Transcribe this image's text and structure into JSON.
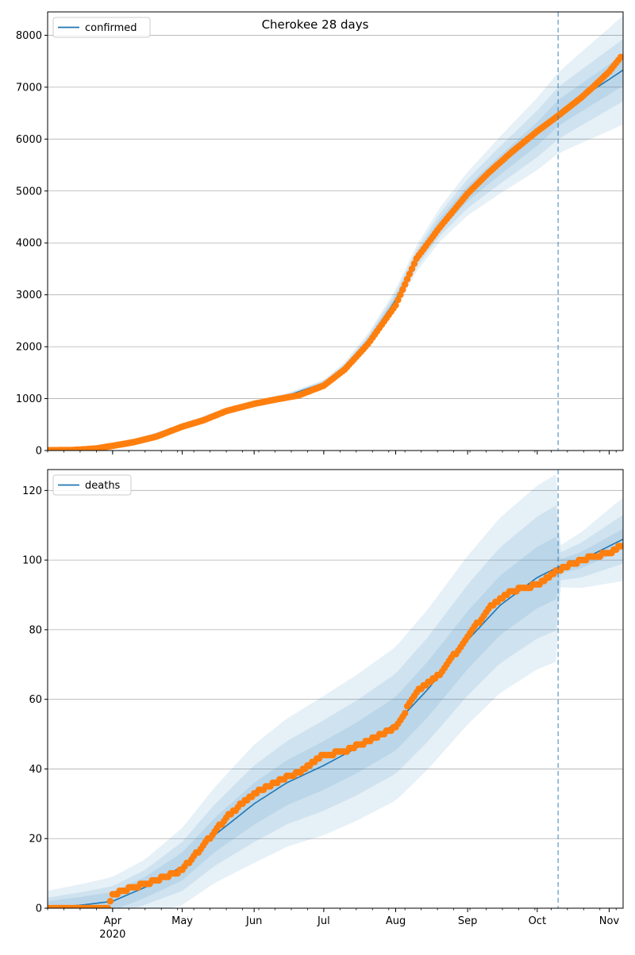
{
  "title": "Cherokee 28 days",
  "colors": {
    "model": "#1f77b4",
    "observed": "#ff7f0e",
    "band": "#1f77b4",
    "grid": "#b0b0b0",
    "vline": "#1f77b4"
  },
  "x_axis": {
    "ticks": [
      {
        "date": "2020-04-01",
        "label": "Apr",
        "sub": "2020"
      },
      {
        "date": "2020-05-01",
        "label": "May"
      },
      {
        "date": "2020-06-01",
        "label": "Jun"
      },
      {
        "date": "2020-07-01",
        "label": "Jul"
      },
      {
        "date": "2020-08-01",
        "label": "Aug"
      },
      {
        "date": "2020-09-01",
        "label": "Sep"
      },
      {
        "date": "2020-10-01",
        "label": "Oct"
      },
      {
        "date": "2020-11-01",
        "label": "Nov"
      }
    ],
    "range": [
      "2020-03-04",
      "2020-11-07"
    ],
    "forecast_start": "2020-10-10"
  },
  "chart_data": [
    {
      "type": "line",
      "legend": "confirmed",
      "legend_position": "top-left",
      "grid": true,
      "ylim": [
        0,
        8450
      ],
      "yticks": [
        0,
        1000,
        2000,
        3000,
        4000,
        5000,
        6000,
        7000,
        8000
      ],
      "model": {
        "x": [
          "2020-03-04",
          "2020-03-20",
          "2020-04-01",
          "2020-04-15",
          "2020-05-01",
          "2020-05-15",
          "2020-06-01",
          "2020-06-15",
          "2020-07-01",
          "2020-07-10",
          "2020-07-20",
          "2020-08-01",
          "2020-08-10",
          "2020-08-20",
          "2020-09-01",
          "2020-09-15",
          "2020-10-01",
          "2020-10-10",
          "2020-10-20",
          "2020-11-01",
          "2020-11-07"
        ],
        "y": [
          0,
          10,
          80,
          250,
          480,
          700,
          900,
          1050,
          1300,
          1600,
          2100,
          2900,
          3700,
          4350,
          4950,
          5500,
          6100,
          6500,
          6800,
          7150,
          7330
        ]
      },
      "band_widths": [
        {
          "x": [
            "2020-03-04",
            "2020-06-01",
            "2020-07-01",
            "2020-08-10",
            "2020-09-01",
            "2020-10-10",
            "2020-11-07"
          ],
          "hw": [
            10,
            50,
            60,
            250,
            420,
            780,
            1050
          ]
        },
        {
          "x": [
            "2020-03-04",
            "2020-06-01",
            "2020-07-01",
            "2020-08-10",
            "2020-09-01",
            "2020-10-10",
            "2020-11-07"
          ],
          "hw": [
            6,
            35,
            40,
            170,
            280,
            500,
            600
          ]
        },
        {
          "x": [
            "2020-03-04",
            "2020-06-01",
            "2020-07-01",
            "2020-08-10",
            "2020-09-01",
            "2020-10-10",
            "2020-11-07"
          ],
          "hw": [
            4,
            20,
            25,
            100,
            150,
            250,
            300
          ]
        }
      ],
      "observed": {
        "x": [
          "2020-03-04",
          "2020-03-15",
          "2020-03-25",
          "2020-04-01",
          "2020-04-10",
          "2020-04-20",
          "2020-05-01",
          "2020-05-10",
          "2020-05-20",
          "2020-06-01",
          "2020-06-10",
          "2020-06-20",
          "2020-07-01",
          "2020-07-10",
          "2020-07-20",
          "2020-08-01",
          "2020-08-10",
          "2020-08-20",
          "2020-09-01",
          "2020-09-10",
          "2020-09-20",
          "2020-10-01",
          "2020-10-10",
          "2020-10-20",
          "2020-10-25",
          "2020-11-01",
          "2020-11-06"
        ],
        "y": [
          5,
          10,
          40,
          90,
          160,
          270,
          460,
          580,
          760,
          900,
          980,
          1060,
          1250,
          1560,
          2050,
          2800,
          3700,
          4300,
          4950,
          5350,
          5750,
          6150,
          6450,
          6800,
          7000,
          7300,
          7580
        ]
      }
    },
    {
      "type": "line",
      "legend": "deaths",
      "legend_position": "top-left",
      "grid": true,
      "ylim": [
        0,
        126
      ],
      "yticks": [
        0,
        20,
        40,
        60,
        80,
        100,
        120
      ],
      "model": {
        "x": [
          "2020-03-04",
          "2020-03-20",
          "2020-04-01",
          "2020-04-15",
          "2020-05-01",
          "2020-05-15",
          "2020-06-01",
          "2020-06-15",
          "2020-07-01",
          "2020-07-15",
          "2020-08-01",
          "2020-08-15",
          "2020-09-01",
          "2020-09-15",
          "2020-10-01",
          "2020-10-10",
          "2020-10-20",
          "2020-11-01",
          "2020-11-07"
        ],
        "y": [
          0,
          1,
          2,
          6,
          12,
          21,
          30,
          36,
          41,
          46,
          53,
          63,
          77,
          87,
          95,
          98,
          100,
          104,
          106
        ]
      },
      "band_widths": [
        {
          "x": [
            "2020-03-04",
            "2020-04-15",
            "2020-06-01",
            "2020-07-01",
            "2020-08-15",
            "2020-10-10",
            "2020-10-11",
            "2020-11-07"
          ],
          "hw": [
            5,
            8,
            17,
            20,
            23,
            27,
            6,
            12
          ]
        },
        {
          "x": [
            "2020-03-04",
            "2020-04-15",
            "2020-06-01",
            "2020-07-01",
            "2020-08-15",
            "2020-10-10",
            "2020-10-11",
            "2020-11-07"
          ],
          "hw": [
            3,
            5,
            11,
            13,
            15,
            18,
            4,
            7
          ]
        },
        {
          "x": [
            "2020-03-04",
            "2020-04-15",
            "2020-06-01",
            "2020-07-01",
            "2020-08-15",
            "2020-10-10",
            "2020-10-11",
            "2020-11-07"
          ],
          "hw": [
            2,
            3,
            6,
            7,
            8,
            9,
            2,
            3
          ]
        }
      ],
      "observed": {
        "x": [
          "2020-03-04",
          "2020-03-30",
          "2020-04-01",
          "2020-04-10",
          "2020-04-20",
          "2020-05-01",
          "2020-05-10",
          "2020-05-20",
          "2020-06-01",
          "2020-06-10",
          "2020-06-20",
          "2020-07-01",
          "2020-07-10",
          "2020-07-20",
          "2020-08-01",
          "2020-08-10",
          "2020-08-20",
          "2020-09-01",
          "2020-09-10",
          "2020-09-20",
          "2020-10-01",
          "2020-10-10",
          "2020-10-20",
          "2020-11-01",
          "2020-11-06"
        ],
        "y": [
          0,
          0,
          4,
          6,
          8,
          11,
          18,
          26,
          33,
          36,
          39,
          44,
          45,
          48,
          52,
          62,
          67,
          78,
          86,
          91,
          93,
          97,
          100,
          102,
          104
        ]
      }
    }
  ]
}
